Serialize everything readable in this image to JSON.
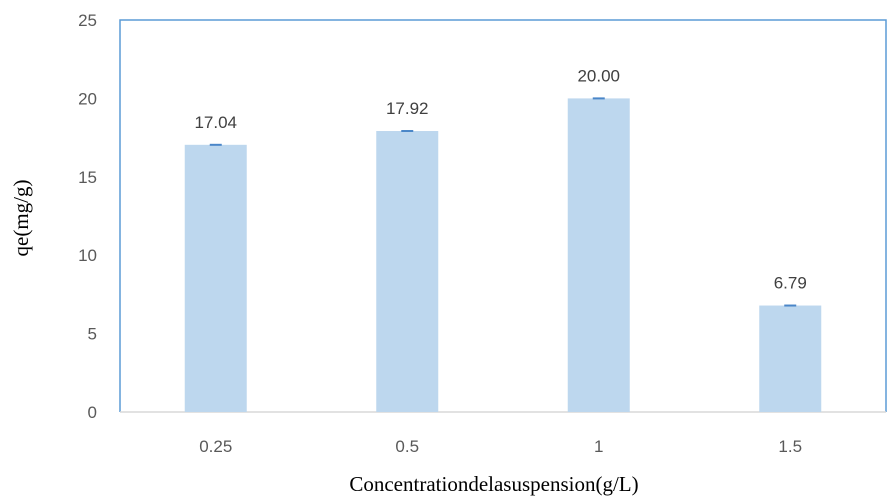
{
  "chart_data": {
    "type": "bar",
    "categories": [
      "0.25",
      "0.5",
      "1",
      "1.5"
    ],
    "values": [
      17.04,
      17.92,
      20.0,
      6.79
    ],
    "data_labels": [
      "17.04",
      "17.92",
      "20.00",
      "6.79"
    ],
    "xlabel": "Concentrationdelasuspension(g/L)",
    "ylabel": "qe(mg/g)",
    "ylim": [
      0,
      25
    ],
    "yticks": [
      0,
      5,
      10,
      15,
      20,
      25
    ],
    "ytick_labels": [
      "0",
      "5",
      "10",
      "15",
      "20",
      "25"
    ],
    "grid": false,
    "error_bars": true,
    "colors": {
      "bar": "#bdd7ee",
      "error_bar": "#4a86c8",
      "plot_border": "#5b9bd5",
      "axis_line": "#d9d9d9"
    }
  }
}
